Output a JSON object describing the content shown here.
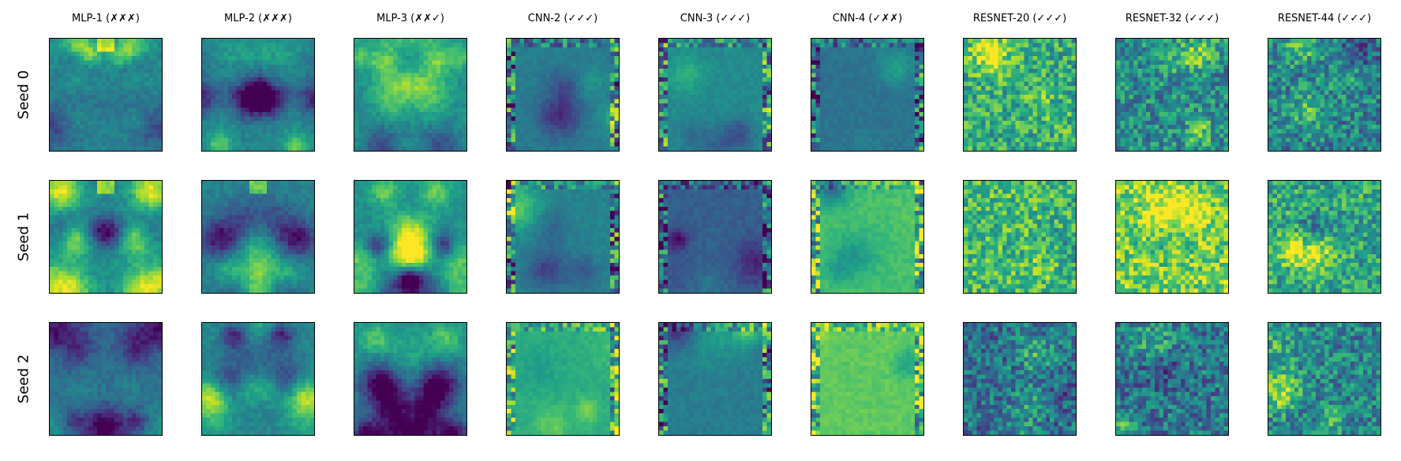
{
  "chart_data": {
    "type": "heatmap",
    "title": "",
    "colormap": "viridis",
    "columns": [
      "MLP-1 (✗✗✗)",
      "MLP-2 (✗✗✗)",
      "MLP-3 (✗✗✓)",
      "CNN-2 (✓✓✓)",
      "CNN-3 (✓✓✓)",
      "CNN-4 (✓✗✗)",
      "RESNET-20 (✓✓✓)",
      "RESNET-32 (✓✓✓)",
      "RESNET-44 (✓✓✓)"
    ],
    "rows": [
      "Seed 0",
      "Seed 1",
      "Seed 2"
    ],
    "grid": false,
    "axis_ticks": false,
    "panels": [
      {
        "row": "Seed 0",
        "column": "MLP-1 (✗✗✗)",
        "base_level": 0.45,
        "top_bright_spot": true
      },
      {
        "row": "Seed 0",
        "column": "MLP-2 (✗✗✗)",
        "base_level": 0.45
      },
      {
        "row": "Seed 0",
        "column": "MLP-3 (✗✗✓)",
        "base_level": 0.5
      },
      {
        "row": "Seed 0",
        "column": "CNN-2 (✓✓✓)",
        "base_level": 0.42,
        "edge_artifacts": true
      },
      {
        "row": "Seed 0",
        "column": "CNN-3 (✓✓✓)",
        "base_level": 0.48,
        "edge_artifacts": true
      },
      {
        "row": "Seed 0",
        "column": "CNN-4 (✓✗✗)",
        "base_level": 0.38,
        "edge_artifacts": true
      },
      {
        "row": "Seed 0",
        "column": "RESNET-20 (✓✓✓)",
        "base_level": 0.62
      },
      {
        "row": "Seed 0",
        "column": "RESNET-32 (✓✓✓)",
        "base_level": 0.48
      },
      {
        "row": "Seed 0",
        "column": "RESNET-44 (✓✓✓)",
        "base_level": 0.45
      },
      {
        "row": "Seed 1",
        "column": "MLP-1 (✗✗✗)",
        "base_level": 0.48,
        "top_bright_spot": true
      },
      {
        "row": "Seed 1",
        "column": "MLP-2 (✗✗✗)",
        "base_level": 0.45,
        "top_bright_spot": true
      },
      {
        "row": "Seed 1",
        "column": "MLP-3 (✗✗✓)",
        "base_level": 0.5
      },
      {
        "row": "Seed 1",
        "column": "CNN-2 (✓✓✓)",
        "base_level": 0.45,
        "edge_artifacts": true
      },
      {
        "row": "Seed 1",
        "column": "CNN-3 (✓✓✓)",
        "base_level": 0.3,
        "edge_artifacts": true
      },
      {
        "row": "Seed 1",
        "column": "CNN-4 (✓✗✗)",
        "base_level": 0.7,
        "edge_artifacts": true
      },
      {
        "row": "Seed 1",
        "column": "RESNET-20 (✓✓✓)",
        "base_level": 0.68
      },
      {
        "row": "Seed 1",
        "column": "RESNET-32 (✓✓✓)",
        "base_level": 0.78
      },
      {
        "row": "Seed 1",
        "column": "RESNET-44 (✓✓✓)",
        "base_level": 0.6
      },
      {
        "row": "Seed 2",
        "column": "MLP-1 (✗✗✗)",
        "base_level": 0.4
      },
      {
        "row": "Seed 2",
        "column": "MLP-2 (✗✗✗)",
        "base_level": 0.45
      },
      {
        "row": "Seed 2",
        "column": "MLP-3 (✗✗✓)",
        "base_level": 0.5
      },
      {
        "row": "Seed 2",
        "column": "CNN-2 (✓✓✓)",
        "base_level": 0.62,
        "edge_artifacts": true
      },
      {
        "row": "Seed 2",
        "column": "CNN-3 (✓✓✓)",
        "base_level": 0.42,
        "edge_artifacts": true
      },
      {
        "row": "Seed 2",
        "column": "CNN-4 (✓✗✗)",
        "base_level": 0.75,
        "edge_artifacts": true
      },
      {
        "row": "Seed 2",
        "column": "RESNET-20 (✓✓✓)",
        "base_level": 0.38
      },
      {
        "row": "Seed 2",
        "column": "RESNET-32 (✓✓✓)",
        "base_level": 0.4
      },
      {
        "row": "Seed 2",
        "column": "RESNET-44 (✓✓✓)",
        "base_level": 0.45
      }
    ]
  }
}
